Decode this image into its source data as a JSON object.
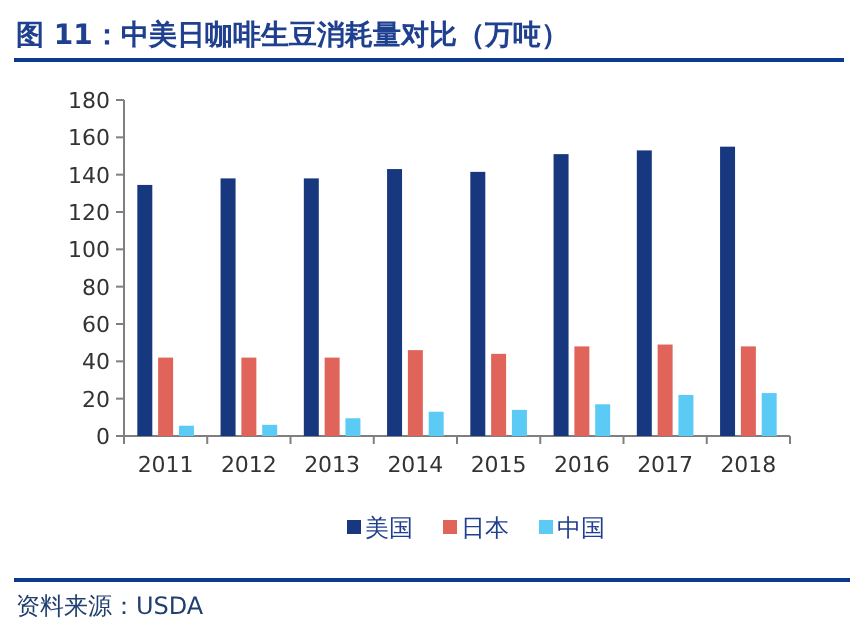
{
  "chart_data": {
    "type": "bar",
    "title": "图 11：中美日咖啡生豆消耗量对比（万吨）",
    "categories": [
      "2011",
      "2012",
      "2013",
      "2014",
      "2015",
      "2016",
      "2017",
      "2018"
    ],
    "series": [
      {
        "name": "美国",
        "color": "#17377f",
        "values": [
          134.5,
          138,
          138,
          143,
          141.5,
          151,
          153,
          155
        ]
      },
      {
        "name": "日本",
        "color": "#e0645a",
        "values": [
          42,
          42,
          42,
          46,
          44,
          48,
          49,
          48
        ]
      },
      {
        "name": "中国",
        "color": "#5bcbf5",
        "values": [
          5.5,
          6,
          9.5,
          13,
          14,
          17,
          22,
          23
        ]
      }
    ],
    "ylim": [
      0,
      180
    ],
    "yticks": [
      0,
      20,
      40,
      60,
      80,
      100,
      120,
      140,
      160,
      180
    ],
    "legend": "bottom",
    "annotations": [
      "资料来源：USDA"
    ]
  }
}
